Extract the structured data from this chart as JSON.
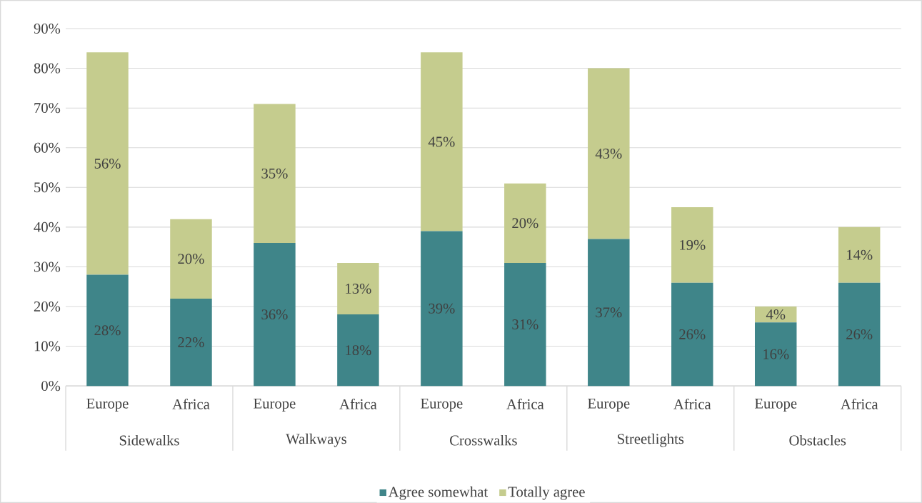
{
  "chart_data": {
    "type": "bar",
    "stacked": true,
    "categories": [
      "Europe",
      "Africa",
      "Europe",
      "Africa",
      "Europe",
      "Africa",
      "Europe",
      "Africa",
      "Europe",
      "Africa"
    ],
    "annotations": [
      "Sidewalks",
      "Walkways",
      "Crosswalks",
      "Streetlights",
      "Obstacles"
    ],
    "series": [
      {
        "name": "Agree somewhat",
        "color": "#3f8589",
        "values": [
          28,
          22,
          36,
          18,
          39,
          31,
          37,
          26,
          16,
          26
        ],
        "value_labels": [
          "28%",
          "22%",
          "36%",
          "18%",
          "39%",
          "31%",
          "37%",
          "26%",
          "16%",
          "26%"
        ]
      },
      {
        "name": "Totally agree",
        "color": "#c5cc8e",
        "values": [
          56,
          20,
          35,
          13,
          45,
          20,
          43,
          19,
          4,
          14
        ],
        "value_labels": [
          "56%",
          "20%",
          "35%",
          "13%",
          "45%",
          "20%",
          "43%",
          "19%",
          "4%",
          "14%"
        ]
      }
    ],
    "ylim": [
      0,
      90
    ],
    "yticks": [
      {
        "value": 0,
        "label": "0%"
      },
      {
        "value": 10,
        "label": "10%"
      },
      {
        "value": 20,
        "label": "20%"
      },
      {
        "value": 30,
        "label": "30%"
      },
      {
        "value": 40,
        "label": "40%"
      },
      {
        "value": 50,
        "label": "50%"
      },
      {
        "value": 60,
        "label": "60%"
      },
      {
        "value": 70,
        "label": "70%"
      },
      {
        "value": 80,
        "label": "80%"
      },
      {
        "value": 90,
        "label": "90%"
      }
    ],
    "grid": "y",
    "legend": "bottom"
  }
}
